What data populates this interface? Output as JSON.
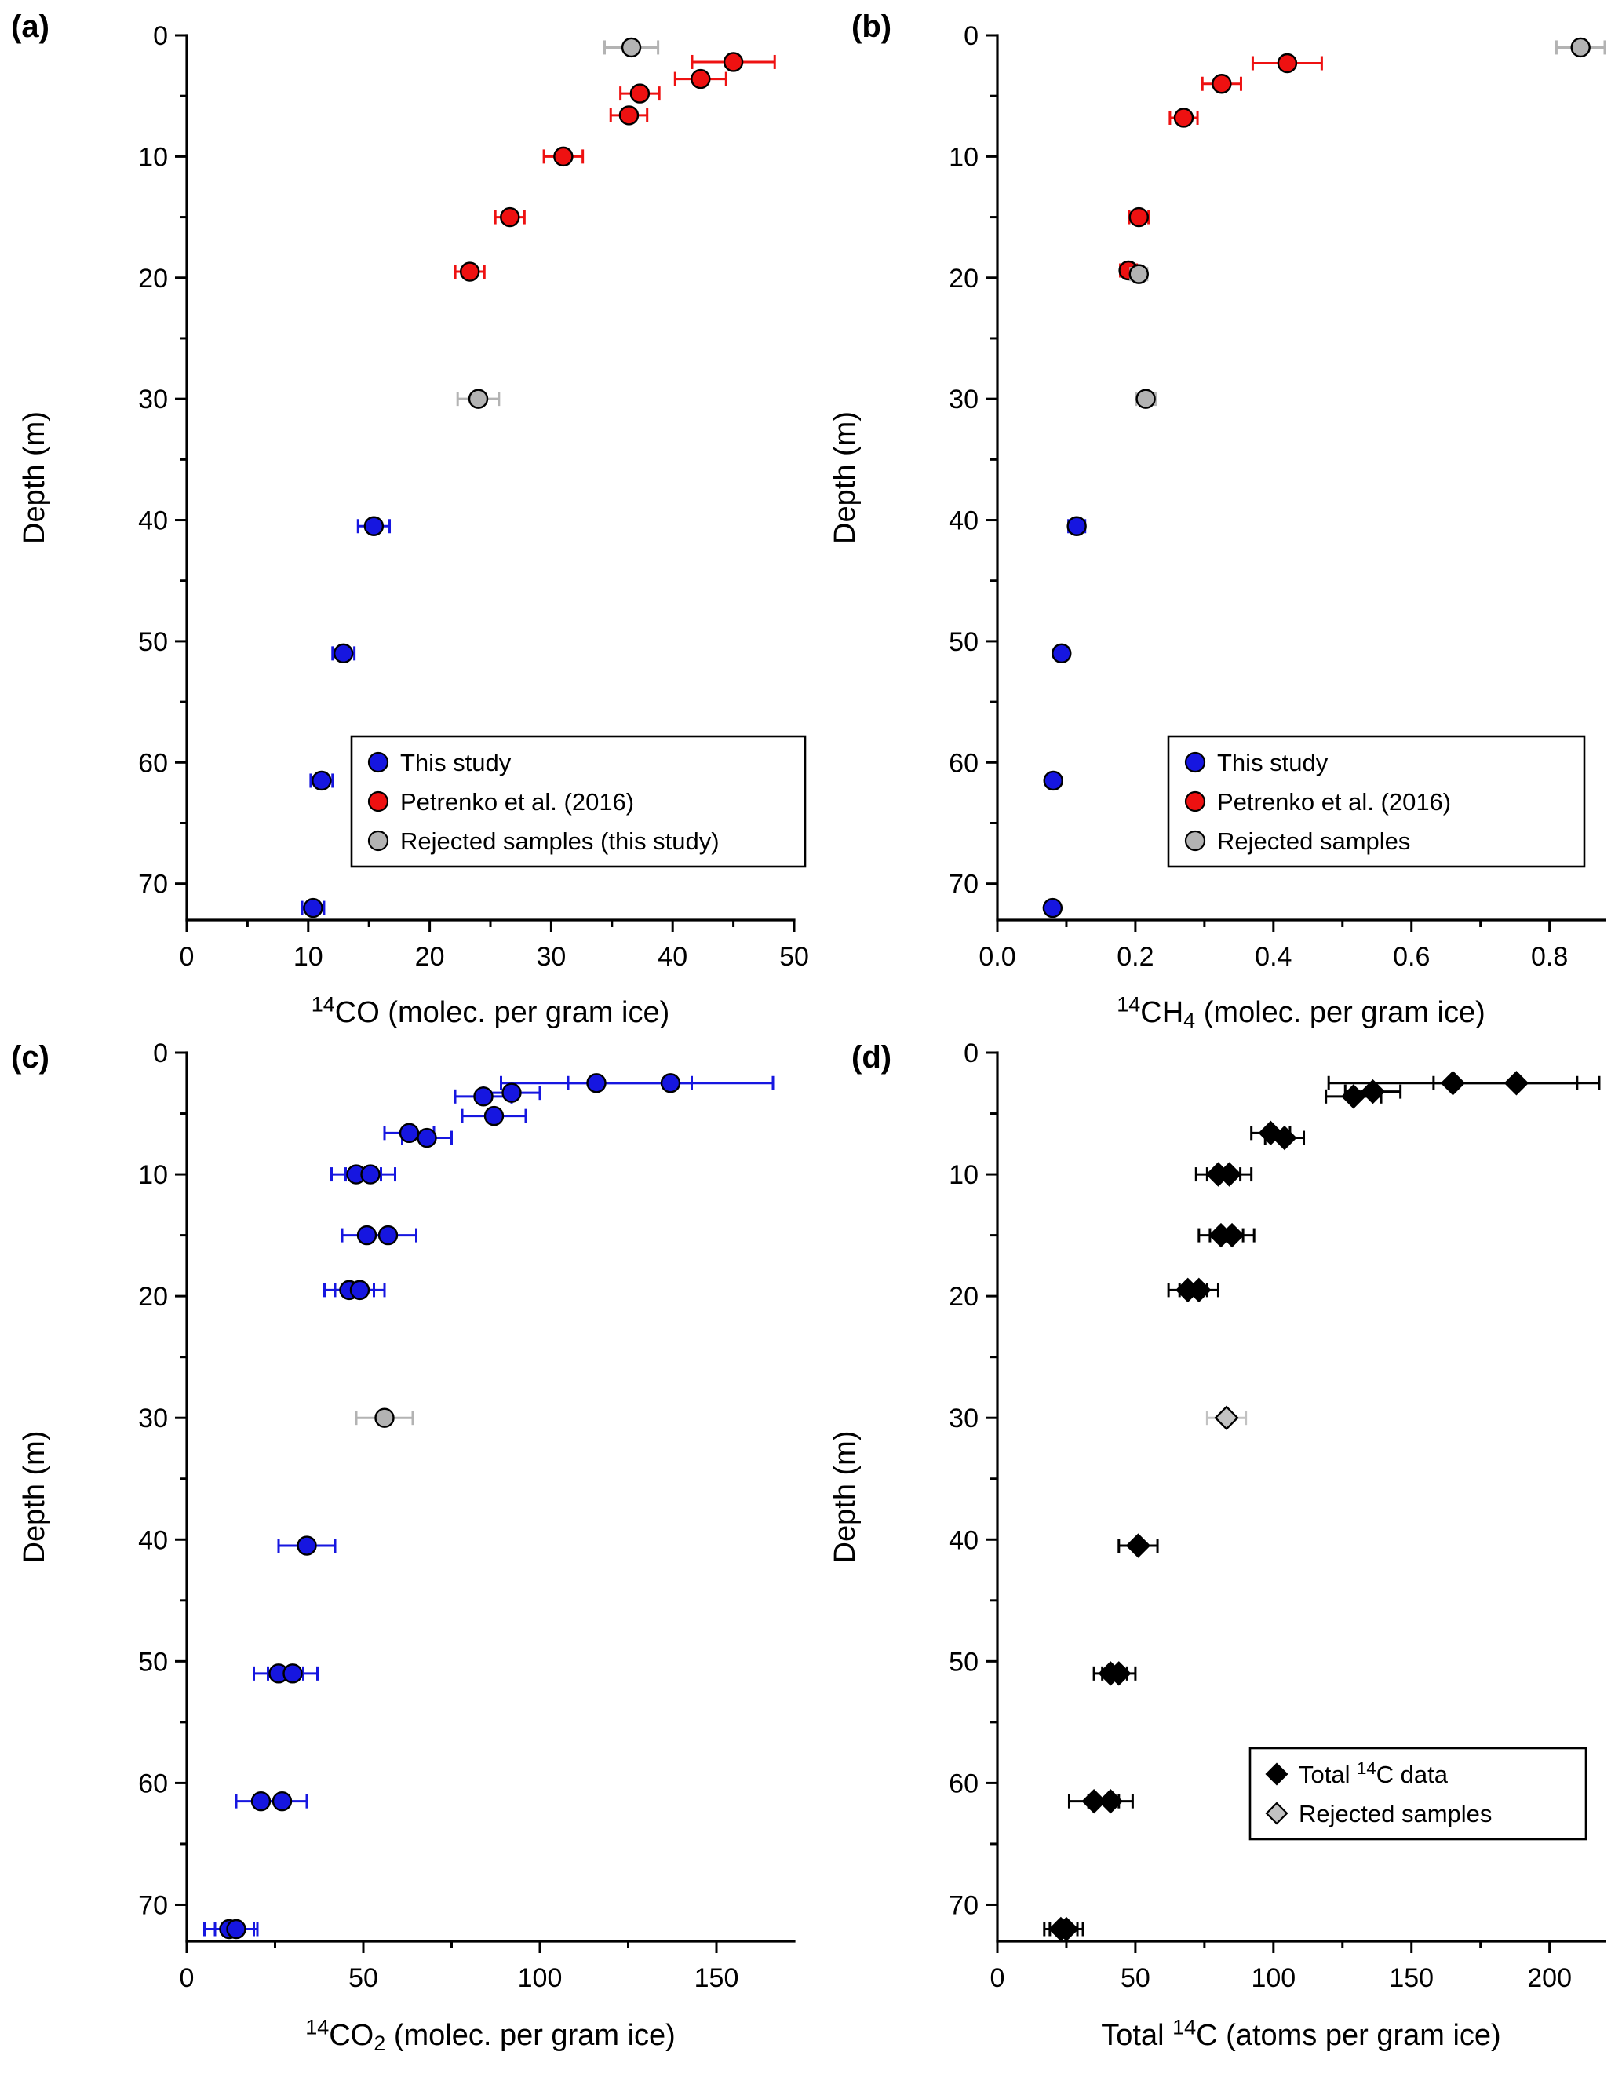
{
  "background": "#ffffff",
  "chart_data": [
    {
      "panel_label": "(a)",
      "type": "scatter",
      "ylabel": "Depth (m)",
      "xlabel_parts": [
        {
          "t": "14",
          "sup": true
        },
        {
          "t": "CO (molec. per gram ice)"
        }
      ],
      "xlim": [
        0,
        50
      ],
      "ylim": [
        0,
        73
      ],
      "y_inverted": true,
      "grid": false,
      "xticks": {
        "values": [
          0,
          10,
          20,
          30,
          40,
          50
        ],
        "labels": [
          "0",
          "10",
          "20",
          "30",
          "40",
          "50"
        ]
      },
      "xminor": [
        5,
        15,
        25,
        35,
        45
      ],
      "yticks": {
        "values": [
          0,
          10,
          20,
          30,
          40,
          50,
          60,
          70
        ],
        "labels": [
          "0",
          "10",
          "20",
          "30",
          "40",
          "50",
          "60",
          "70"
        ]
      },
      "yminor": [
        5,
        15,
        25,
        35,
        45,
        55,
        65
      ],
      "series": [
        {
          "name": "Petrenko et al. (2016)",
          "marker": "circle",
          "color": "#ee1111",
          "points": [
            {
              "x": 45.0,
              "depth": 2.2,
              "xerr": 3.4
            },
            {
              "x": 42.3,
              "depth": 3.6,
              "xerr": 2.1
            },
            {
              "x": 37.3,
              "depth": 4.8,
              "xerr": 1.6
            },
            {
              "x": 36.4,
              "depth": 6.6,
              "xerr": 1.5
            },
            {
              "x": 31.0,
              "depth": 10.0,
              "xerr": 1.6
            },
            {
              "x": 26.6,
              "depth": 15.0,
              "xerr": 1.2
            },
            {
              "x": 23.3,
              "depth": 19.5,
              "xerr": 1.2
            }
          ]
        },
        {
          "name": "Rejected samples (this study)",
          "marker": "circle",
          "color": "#b3b3b3",
          "points": [
            {
              "x": 36.6,
              "depth": 1.0,
              "xerr": 2.2
            },
            {
              "x": 24.0,
              "depth": 30.0,
              "xerr": 1.7
            }
          ]
        },
        {
          "name": "This study",
          "marker": "circle",
          "color": "#1616e0",
          "points": [
            {
              "x": 15.4,
              "depth": 40.5,
              "xerr": 1.3
            },
            {
              "x": 12.9,
              "depth": 51.0,
              "xerr": 0.9
            },
            {
              "x": 11.1,
              "depth": 61.5,
              "xerr": 0.9
            },
            {
              "x": 10.4,
              "depth": 72.0,
              "xerr": 0.9
            }
          ]
        }
      ],
      "legend": {
        "position": "lower-center",
        "entries": [
          {
            "marker": "circle",
            "color": "#1616e0",
            "label": "This study"
          },
          {
            "marker": "circle",
            "color": "#ee1111",
            "label": "Petrenko et al. (2016)"
          },
          {
            "marker": "circle",
            "color": "#b3b3b3",
            "label": "Rejected samples (this study)"
          }
        ]
      }
    },
    {
      "panel_label": "(b)",
      "type": "scatter",
      "ylabel": "Depth (m)",
      "xlabel_parts": [
        {
          "t": "14",
          "sup": true
        },
        {
          "t": "CH"
        },
        {
          "t": "4",
          "sub": true
        },
        {
          "t": " (molec. per gram ice)"
        }
      ],
      "xlim": [
        0,
        0.88
      ],
      "ylim": [
        0,
        73
      ],
      "y_inverted": true,
      "grid": false,
      "xticks": {
        "values": [
          0,
          0.2,
          0.4,
          0.6,
          0.8
        ],
        "labels": [
          "0.0",
          "0.2",
          "0.4",
          "0.6",
          "0.8"
        ]
      },
      "xminor": [
        0.1,
        0.3,
        0.5,
        0.7
      ],
      "yticks": {
        "values": [
          0,
          10,
          20,
          30,
          40,
          50,
          60,
          70
        ],
        "labels": [
          "0",
          "10",
          "20",
          "30",
          "40",
          "50",
          "60",
          "70"
        ]
      },
      "yminor": [
        5,
        15,
        25,
        35,
        45,
        55,
        65
      ],
      "series": [
        {
          "name": "Petrenko et al. (2016)",
          "marker": "circle",
          "color": "#ee1111",
          "points": [
            {
              "x": 0.42,
              "depth": 2.3,
              "xerr": 0.05
            },
            {
              "x": 0.325,
              "depth": 4.0,
              "xerr": 0.028
            },
            {
              "x": 0.27,
              "depth": 6.8,
              "xerr": 0.02
            },
            {
              "x": 0.205,
              "depth": 15.0,
              "xerr": 0.014
            },
            {
              "x": 0.19,
              "depth": 19.4,
              "xerr": 0.012
            }
          ]
        },
        {
          "name": "Rejected samples",
          "marker": "circle",
          "color": "#b3b3b3",
          "points": [
            {
              "x": 0.845,
              "depth": 1.0,
              "xerr": 0.035
            },
            {
              "x": 0.205,
              "depth": 19.7,
              "xerr": 0.012
            },
            {
              "x": 0.215,
              "depth": 30.0,
              "xerr": 0.014
            }
          ]
        },
        {
          "name": "This study",
          "marker": "circle",
          "color": "#1616e0",
          "points": [
            {
              "x": 0.115,
              "depth": 40.5,
              "xerr": 0.012
            },
            {
              "x": 0.093,
              "depth": 51.0,
              "xerr": 0.009
            },
            {
              "x": 0.081,
              "depth": 61.5,
              "xerr": 0.008
            },
            {
              "x": 0.08,
              "depth": 72.0,
              "xerr": 0.008
            }
          ]
        }
      ],
      "legend": {
        "position": "lower-right",
        "entries": [
          {
            "marker": "circle",
            "color": "#1616e0",
            "label": "This study"
          },
          {
            "marker": "circle",
            "color": "#ee1111",
            "label": "Petrenko et al. (2016)"
          },
          {
            "marker": "circle",
            "color": "#b3b3b3",
            "label": "Rejected samples"
          }
        ]
      }
    },
    {
      "panel_label": "(c)",
      "type": "scatter",
      "ylabel": "Depth (m)",
      "xlabel_parts": [
        {
          "t": "14",
          "sup": true
        },
        {
          "t": "CO"
        },
        {
          "t": "2",
          "sub": true
        },
        {
          "t": " (molec. per gram ice)"
        }
      ],
      "xlim": [
        0,
        172
      ],
      "ylim": [
        0,
        73
      ],
      "y_inverted": true,
      "grid": false,
      "xticks": {
        "values": [
          0,
          50,
          100,
          150
        ],
        "labels": [
          "0",
          "50",
          "100",
          "150"
        ]
      },
      "xminor": [
        25,
        75,
        125
      ],
      "yticks": {
        "values": [
          0,
          10,
          20,
          30,
          40,
          50,
          60,
          70
        ],
        "labels": [
          "0",
          "10",
          "20",
          "30",
          "40",
          "50",
          "60",
          "70"
        ]
      },
      "yminor": [
        5,
        15,
        25,
        35,
        45,
        55,
        65
      ],
      "series": [
        {
          "name": "This study",
          "marker": "circle",
          "color": "#1616e0",
          "points": [
            {
              "x": 116,
              "depth": 2.5,
              "xerr": 27
            },
            {
              "x": 137,
              "depth": 2.5,
              "xerr": 29
            },
            {
              "x": 84,
              "depth": 3.6,
              "xerr": 8
            },
            {
              "x": 92,
              "depth": 3.3,
              "xerr": 8
            },
            {
              "x": 87,
              "depth": 5.2,
              "xerr": 9
            },
            {
              "x": 63,
              "depth": 6.6,
              "xerr": 7
            },
            {
              "x": 68,
              "depth": 7.0,
              "xerr": 7
            },
            {
              "x": 48,
              "depth": 10.0,
              "xerr": 7
            },
            {
              "x": 52,
              "depth": 10.0,
              "xerr": 7
            },
            {
              "x": 51,
              "depth": 15.0,
              "xerr": 7
            },
            {
              "x": 57,
              "depth": 15.0,
              "xerr": 8
            },
            {
              "x": 46,
              "depth": 19.5,
              "xerr": 7
            },
            {
              "x": 49,
              "depth": 19.5,
              "xerr": 7
            },
            {
              "x": 34,
              "depth": 40.5,
              "xerr": 8
            },
            {
              "x": 26,
              "depth": 51.0,
              "xerr": 7
            },
            {
              "x": 30,
              "depth": 51.0,
              "xerr": 7
            },
            {
              "x": 21,
              "depth": 61.5,
              "xerr": 7
            },
            {
              "x": 27,
              "depth": 61.5,
              "xerr": 7
            },
            {
              "x": 12,
              "depth": 72.0,
              "xerr": 7
            },
            {
              "x": 14,
              "depth": 72.0,
              "xerr": 6
            }
          ]
        },
        {
          "name": "Rejected samples",
          "marker": "circle",
          "color": "#b3b3b3",
          "points": [
            {
              "x": 56,
              "depth": 30.0,
              "xerr": 8
            }
          ]
        }
      ],
      "legend": null
    },
    {
      "panel_label": "(d)",
      "type": "scatter",
      "ylabel": "Depth (m)",
      "xlabel_parts": [
        {
          "t": "Total "
        },
        {
          "t": "14",
          "sup": true
        },
        {
          "t": "C (atoms per gram ice)"
        }
      ],
      "xlim": [
        0,
        220
      ],
      "ylim": [
        0,
        73
      ],
      "y_inverted": true,
      "grid": false,
      "xticks": {
        "values": [
          0,
          50,
          100,
          150,
          200
        ],
        "labels": [
          "0",
          "50",
          "100",
          "150",
          "200"
        ]
      },
      "xminor": [
        25,
        75,
        125,
        175
      ],
      "yticks": {
        "values": [
          0,
          10,
          20,
          30,
          40,
          50,
          60,
          70
        ],
        "labels": [
          "0",
          "10",
          "20",
          "30",
          "40",
          "50",
          "60",
          "70"
        ]
      },
      "yminor": [
        5,
        15,
        25,
        35,
        45,
        55,
        65
      ],
      "series": [
        {
          "name": "Total 14C data",
          "marker": "diamond",
          "color": "#000000",
          "points": [
            {
              "x": 165,
              "depth": 2.5,
              "xerr": 45
            },
            {
              "x": 188,
              "depth": 2.5,
              "xerr": 30
            },
            {
              "x": 129,
              "depth": 3.6,
              "xerr": 10
            },
            {
              "x": 136,
              "depth": 3.2,
              "xerr": 10
            },
            {
              "x": 99,
              "depth": 6.6,
              "xerr": 7
            },
            {
              "x": 104,
              "depth": 7.0,
              "xerr": 7
            },
            {
              "x": 80,
              "depth": 10.0,
              "xerr": 8
            },
            {
              "x": 84,
              "depth": 10.0,
              "xerr": 8
            },
            {
              "x": 81,
              "depth": 15.0,
              "xerr": 8
            },
            {
              "x": 85,
              "depth": 15.0,
              "xerr": 8
            },
            {
              "x": 69,
              "depth": 19.5,
              "xerr": 7
            },
            {
              "x": 73,
              "depth": 19.5,
              "xerr": 7
            },
            {
              "x": 51,
              "depth": 40.5,
              "xerr": 7
            },
            {
              "x": 41,
              "depth": 51.0,
              "xerr": 6
            },
            {
              "x": 44,
              "depth": 51.0,
              "xerr": 6
            },
            {
              "x": 35,
              "depth": 61.5,
              "xerr": 9
            },
            {
              "x": 41,
              "depth": 61.5,
              "xerr": 8
            },
            {
              "x": 23,
              "depth": 72.0,
              "xerr": 6
            },
            {
              "x": 25,
              "depth": 72.0,
              "xerr": 6
            }
          ]
        },
        {
          "name": "Rejected samples",
          "marker": "diamond",
          "color": "#c2c2c2",
          "points": [
            {
              "x": 83,
              "depth": 30.0,
              "xerr": 7
            }
          ]
        }
      ],
      "legend": {
        "position": "lower-right",
        "entries": [
          {
            "marker": "diamond",
            "color": "#000000",
            "label_parts": [
              {
                "t": "Total "
              },
              {
                "t": "14",
                "sup": true
              },
              {
                "t": "C data"
              }
            ]
          },
          {
            "marker": "diamond",
            "color": "#c2c2c2",
            "label": "Rejected samples"
          }
        ]
      }
    }
  ]
}
